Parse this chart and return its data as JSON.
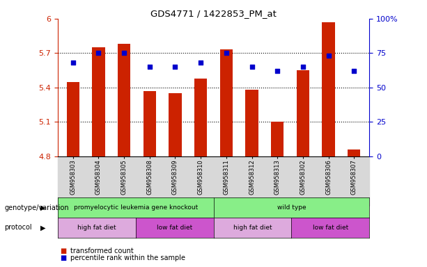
{
  "title": "GDS4771 / 1422853_PM_at",
  "samples": [
    "GSM958303",
    "GSM958304",
    "GSM958305",
    "GSM958308",
    "GSM958309",
    "GSM958310",
    "GSM958311",
    "GSM958312",
    "GSM958313",
    "GSM958302",
    "GSM958306",
    "GSM958307"
  ],
  "bar_values": [
    5.45,
    5.75,
    5.78,
    5.37,
    5.35,
    5.48,
    5.73,
    5.38,
    5.1,
    5.55,
    5.97,
    4.86
  ],
  "percentile_values": [
    68,
    75,
    75,
    65,
    65,
    68,
    75,
    65,
    62,
    65,
    73,
    62
  ],
  "bar_color": "#cc2200",
  "dot_color": "#0000cc",
  "ylim_left": [
    4.8,
    6.0
  ],
  "ylim_right": [
    0,
    100
  ],
  "yticks_left": [
    4.8,
    5.1,
    5.4,
    5.7,
    6.0
  ],
  "yticks_right": [
    0,
    25,
    50,
    75,
    100
  ],
  "ytick_labels_left": [
    "4.8",
    "5.1",
    "5.4",
    "5.7",
    "6"
  ],
  "ytick_labels_right": [
    "0",
    "25",
    "50",
    "75",
    "100%"
  ],
  "hlines": [
    5.1,
    5.4,
    5.7
  ],
  "genotype_groups": [
    {
      "label": "promyelocytic leukemia gene knockout",
      "start": 0,
      "end": 6,
      "color": "#88ee88"
    },
    {
      "label": "wild type",
      "start": 6,
      "end": 12,
      "color": "#88ee88"
    }
  ],
  "protocol_colors_alt": [
    "#ddaadd",
    "#cc55cc",
    "#ddaadd",
    "#cc55cc"
  ],
  "protocol_labels": [
    "high fat diet",
    "low fat diet",
    "high fat diet",
    "low fat diet"
  ],
  "protocol_ranges": [
    [
      0,
      3
    ],
    [
      3,
      6
    ],
    [
      6,
      9
    ],
    [
      9,
      12
    ]
  ],
  "legend_items": [
    {
      "label": "transformed count",
      "color": "#cc2200"
    },
    {
      "label": "percentile rank within the sample",
      "color": "#0000cc"
    }
  ],
  "background_color": "#ffffff",
  "xticklabel_bg": "#d8d8d8",
  "left_tick_color": "#cc2200",
  "right_tick_color": "#0000cc"
}
